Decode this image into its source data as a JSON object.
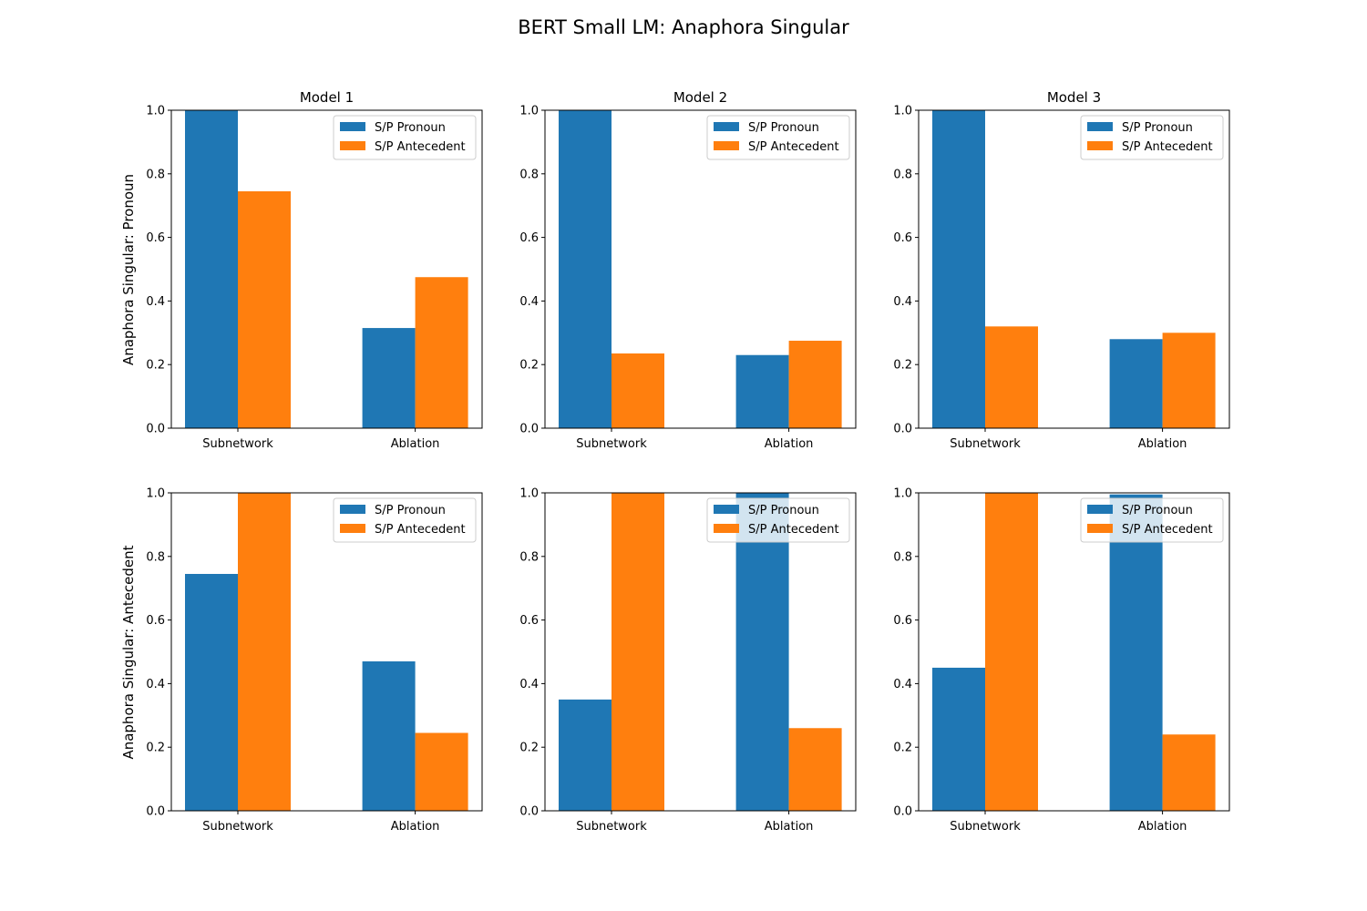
{
  "chart_data": {
    "type": "bar",
    "title": "BERT Small LM: Anaphora Singular",
    "series_names": [
      "S/P Pronoun",
      "S/P Antecedent"
    ],
    "colors": {
      "S/P Pronoun": "#1f77b4",
      "S/P Antecedent": "#ff7f0e"
    },
    "categories": [
      "Subnetwork",
      "Ablation"
    ],
    "ylim": [
      0,
      1
    ],
    "yticks": [
      "0.0",
      "0.2",
      "0.4",
      "0.6",
      "0.8",
      "1.0"
    ],
    "legend_position": "upper right",
    "grid": false,
    "row_labels": [
      "Anaphora Singular: Pronoun",
      "Anaphora Singular: Antecedent"
    ],
    "col_titles": [
      "Model 1",
      "Model 2",
      "Model 3"
    ],
    "panels": [
      {
        "row": 0,
        "col": 0,
        "series": [
          {
            "name": "S/P Pronoun",
            "values": [
              1.0,
              0.315
            ]
          },
          {
            "name": "S/P Antecedent",
            "values": [
              0.745,
              0.475
            ]
          }
        ]
      },
      {
        "row": 0,
        "col": 1,
        "series": [
          {
            "name": "S/P Pronoun",
            "values": [
              1.0,
              0.23
            ]
          },
          {
            "name": "S/P Antecedent",
            "values": [
              0.235,
              0.275
            ]
          }
        ]
      },
      {
        "row": 0,
        "col": 2,
        "series": [
          {
            "name": "S/P Pronoun",
            "values": [
              1.0,
              0.28
            ]
          },
          {
            "name": "S/P Antecedent",
            "values": [
              0.32,
              0.3
            ]
          }
        ]
      },
      {
        "row": 1,
        "col": 0,
        "series": [
          {
            "name": "S/P Pronoun",
            "values": [
              0.745,
              0.47
            ]
          },
          {
            "name": "S/P Antecedent",
            "values": [
              1.0,
              0.245
            ]
          }
        ]
      },
      {
        "row": 1,
        "col": 1,
        "series": [
          {
            "name": "S/P Pronoun",
            "values": [
              0.35,
              1.0
            ]
          },
          {
            "name": "S/P Antecedent",
            "values": [
              1.0,
              0.26
            ]
          }
        ]
      },
      {
        "row": 1,
        "col": 2,
        "series": [
          {
            "name": "S/P Pronoun",
            "values": [
              0.45,
              0.995
            ]
          },
          {
            "name": "S/P Antecedent",
            "values": [
              1.0,
              0.24
            ]
          }
        ]
      }
    ]
  }
}
